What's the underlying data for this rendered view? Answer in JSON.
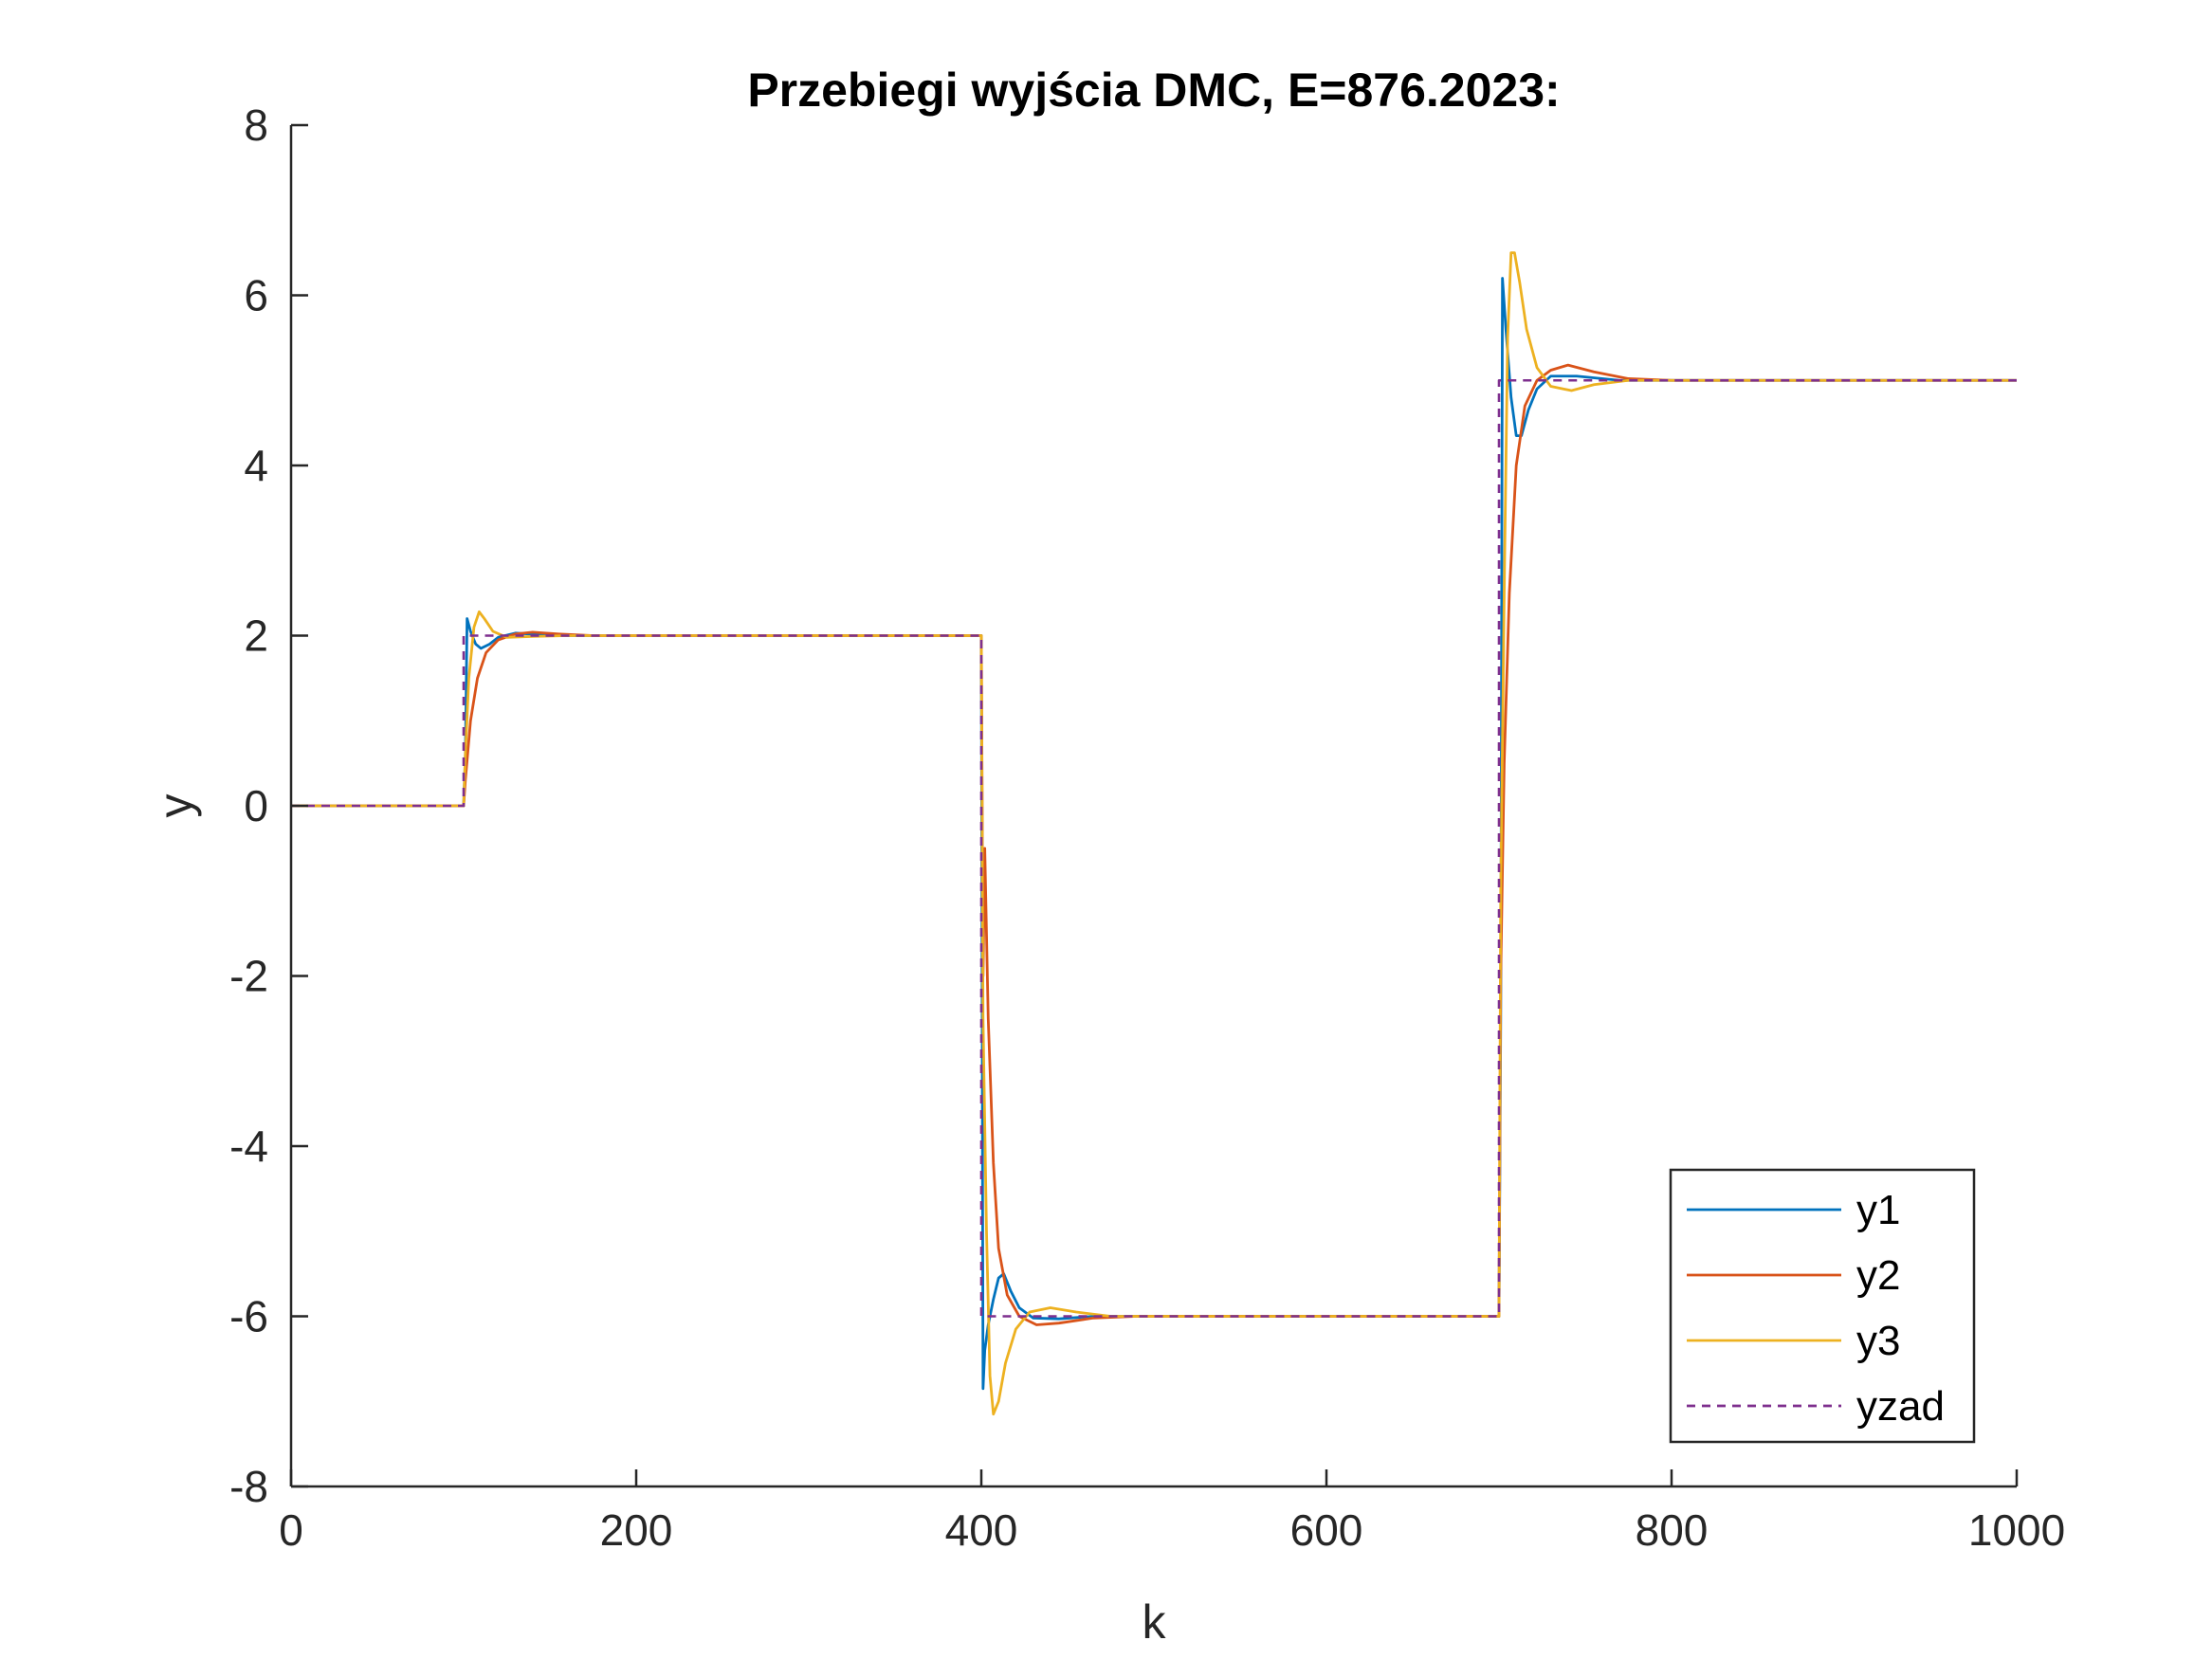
{
  "chart_data": {
    "type": "line",
    "title": "Przebiegi wyjścia DMC, E=876.2023:",
    "xlabel": "k",
    "ylabel": "y",
    "xlim": [
      0,
      1000
    ],
    "ylim": [
      -8,
      8
    ],
    "xticks": [
      0,
      200,
      400,
      600,
      800,
      1000
    ],
    "xtick_labels": [
      "0",
      "200",
      "400",
      "600",
      "800",
      "1000"
    ],
    "yticks": [
      -8,
      -6,
      -4,
      -2,
      0,
      2,
      4,
      6,
      8
    ],
    "ytick_labels": [
      "-8",
      "-6",
      "-4",
      "-2",
      "0",
      "2",
      "4",
      "6",
      "8"
    ],
    "grid": false,
    "legend_position": "bottom-right",
    "series": [
      {
        "name": "y1",
        "color": "#0072BD",
        "dash": "solid",
        "points": [
          [
            0,
            0
          ],
          [
            100,
            0
          ],
          [
            101,
            0.6
          ],
          [
            102,
            2.2
          ],
          [
            104,
            2.05
          ],
          [
            107,
            1.9
          ],
          [
            110,
            1.85
          ],
          [
            115,
            1.9
          ],
          [
            120,
            1.98
          ],
          [
            130,
            2.03
          ],
          [
            145,
            2.01
          ],
          [
            160,
            2.0
          ],
          [
            400,
            2.0
          ],
          [
            401,
            -6.85
          ],
          [
            402,
            -6.4
          ],
          [
            404,
            -6.1
          ],
          [
            407,
            -5.8
          ],
          [
            410,
            -5.55
          ],
          [
            413,
            -5.5
          ],
          [
            417,
            -5.7
          ],
          [
            422,
            -5.9
          ],
          [
            430,
            -6.02
          ],
          [
            445,
            -6.03
          ],
          [
            465,
            -6.0
          ],
          [
            700,
            -6.0
          ],
          [
            701,
            -2.5
          ],
          [
            702,
            6.2
          ],
          [
            704,
            5.6
          ],
          [
            707,
            4.8
          ],
          [
            710,
            4.35
          ],
          [
            713,
            4.35
          ],
          [
            717,
            4.65
          ],
          [
            722,
            4.9
          ],
          [
            730,
            5.05
          ],
          [
            745,
            5.05
          ],
          [
            770,
            5.0
          ],
          [
            1000,
            5.0
          ]
        ]
      },
      {
        "name": "y2",
        "color": "#D95319",
        "dash": "solid",
        "points": [
          [
            0,
            0
          ],
          [
            100,
            0
          ],
          [
            101,
            0.3
          ],
          [
            104,
            1.0
          ],
          [
            108,
            1.5
          ],
          [
            113,
            1.8
          ],
          [
            120,
            1.95
          ],
          [
            130,
            2.02
          ],
          [
            140,
            2.04
          ],
          [
            155,
            2.02
          ],
          [
            175,
            2.0
          ],
          [
            400,
            2.0
          ],
          [
            401,
            -2.0
          ],
          [
            402,
            -0.5
          ],
          [
            404,
            -2.5
          ],
          [
            407,
            -4.2
          ],
          [
            410,
            -5.2
          ],
          [
            415,
            -5.75
          ],
          [
            422,
            -6.0
          ],
          [
            432,
            -6.1
          ],
          [
            445,
            -6.08
          ],
          [
            465,
            -6.02
          ],
          [
            490,
            -6.0
          ],
          [
            700,
            -6.0
          ],
          [
            701,
            -2.0
          ],
          [
            703,
            0.5
          ],
          [
            706,
            2.5
          ],
          [
            710,
            4.0
          ],
          [
            715,
            4.7
          ],
          [
            722,
            5.0
          ],
          [
            730,
            5.12
          ],
          [
            740,
            5.18
          ],
          [
            755,
            5.1
          ],
          [
            775,
            5.02
          ],
          [
            800,
            5.0
          ],
          [
            1000,
            5.0
          ]
        ]
      },
      {
        "name": "y3",
        "color": "#EDB120",
        "dash": "solid",
        "points": [
          [
            0,
            0
          ],
          [
            100,
            0
          ],
          [
            101,
            0.6
          ],
          [
            103,
            1.5
          ],
          [
            106,
            2.1
          ],
          [
            109,
            2.28
          ],
          [
            112,
            2.2
          ],
          [
            117,
            2.05
          ],
          [
            125,
            1.98
          ],
          [
            140,
            1.99
          ],
          [
            160,
            2.0
          ],
          [
            400,
            2.0
          ],
          [
            401,
            -2.5
          ],
          [
            403,
            -5.0
          ],
          [
            405,
            -6.7
          ],
          [
            407,
            -7.15
          ],
          [
            410,
            -7.0
          ],
          [
            414,
            -6.55
          ],
          [
            420,
            -6.15
          ],
          [
            428,
            -5.95
          ],
          [
            440,
            -5.9
          ],
          [
            455,
            -5.95
          ],
          [
            475,
            -6.0
          ],
          [
            700,
            -6.0
          ],
          [
            701,
            -1.0
          ],
          [
            703,
            2.5
          ],
          [
            705,
            5.5
          ],
          [
            707,
            6.5
          ],
          [
            709,
            6.5
          ],
          [
            712,
            6.15
          ],
          [
            716,
            5.6
          ],
          [
            722,
            5.15
          ],
          [
            730,
            4.93
          ],
          [
            742,
            4.88
          ],
          [
            755,
            4.95
          ],
          [
            775,
            5.0
          ],
          [
            1000,
            5.0
          ]
        ]
      },
      {
        "name": "yzad",
        "color": "#7E2F8E",
        "dash": "dashed",
        "points": [
          [
            0,
            0
          ],
          [
            100,
            0
          ],
          [
            100,
            2
          ],
          [
            400,
            2
          ],
          [
            400,
            -6
          ],
          [
            700,
            -6
          ],
          [
            700,
            5
          ],
          [
            1000,
            5
          ]
        ]
      }
    ]
  }
}
